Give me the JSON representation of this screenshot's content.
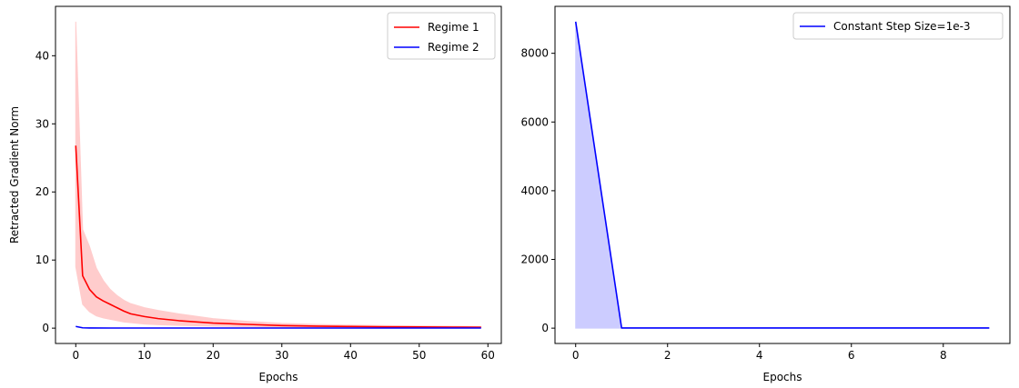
{
  "chart_data": [
    {
      "type": "line",
      "title": "",
      "xlabel": "Epochs",
      "ylabel": "Retracted Gradient Norm",
      "xlim": [
        -2.95,
        61.95
      ],
      "ylim": [
        -2.25,
        47.25
      ],
      "xticks": [
        0,
        10,
        20,
        30,
        40,
        50,
        60
      ],
      "yticks": [
        0,
        10,
        20,
        30,
        40
      ],
      "legend_position": "upper right",
      "grid": false,
      "series": [
        {
          "name": "Regime 1",
          "color": "#ff0000",
          "band_color": "#ffcccc",
          "x": [
            0,
            1,
            2,
            3,
            4,
            5,
            6,
            7,
            8,
            10,
            12,
            15,
            20,
            25,
            30,
            35,
            40,
            45,
            50,
            55,
            59
          ],
          "values": [
            26.8,
            7.7,
            5.7,
            4.6,
            4.0,
            3.5,
            3.0,
            2.5,
            2.1,
            1.7,
            1.4,
            1.1,
            0.75,
            0.55,
            0.38,
            0.3,
            0.24,
            0.2,
            0.17,
            0.15,
            0.13
          ],
          "band_upper": [
            45.0,
            14.5,
            12.0,
            8.8,
            7.0,
            5.7,
            4.8,
            4.1,
            3.6,
            3.0,
            2.6,
            2.1,
            1.4,
            1.0,
            0.7,
            0.55,
            0.45,
            0.38,
            0.32,
            0.28,
            0.25
          ],
          "band_lower": [
            9.0,
            3.5,
            2.4,
            1.8,
            1.5,
            1.3,
            1.1,
            0.9,
            0.8,
            0.6,
            0.5,
            0.4,
            0.3,
            0.2,
            0.15,
            0.12,
            0.1,
            0.08,
            0.07,
            0.06,
            0.05
          ]
        },
        {
          "name": "Regime 2",
          "color": "#0000ff",
          "x": [
            0,
            1,
            2,
            5,
            10,
            20,
            30,
            40,
            50,
            59
          ],
          "values": [
            0.25,
            0.05,
            0.03,
            0.02,
            0.02,
            0.02,
            0.02,
            0.02,
            0.02,
            0.02
          ]
        }
      ]
    },
    {
      "type": "line",
      "title": "",
      "xlabel": "Epochs",
      "ylabel": "",
      "xlim": [
        -0.45,
        9.45
      ],
      "ylim": [
        -446,
        9366
      ],
      "xticks": [
        0,
        2,
        4,
        6,
        8
      ],
      "yticks": [
        0,
        2000,
        4000,
        6000,
        8000
      ],
      "legend_position": "upper right",
      "grid": false,
      "series": [
        {
          "name": "Constant Step Size=1e-3",
          "color": "#0000ff",
          "band_color": "#ccccff",
          "x": [
            0,
            1,
            2,
            3,
            4,
            5,
            6,
            7,
            8,
            9
          ],
          "values": [
            8920,
            5,
            5,
            5,
            5,
            5,
            5,
            5,
            5,
            5
          ],
          "band_upper": [
            8920,
            5,
            5,
            5,
            5,
            5,
            5,
            5,
            5,
            5
          ],
          "band_lower": [
            0,
            0,
            0,
            0,
            0,
            0,
            0,
            0,
            0,
            0
          ]
        }
      ]
    }
  ]
}
